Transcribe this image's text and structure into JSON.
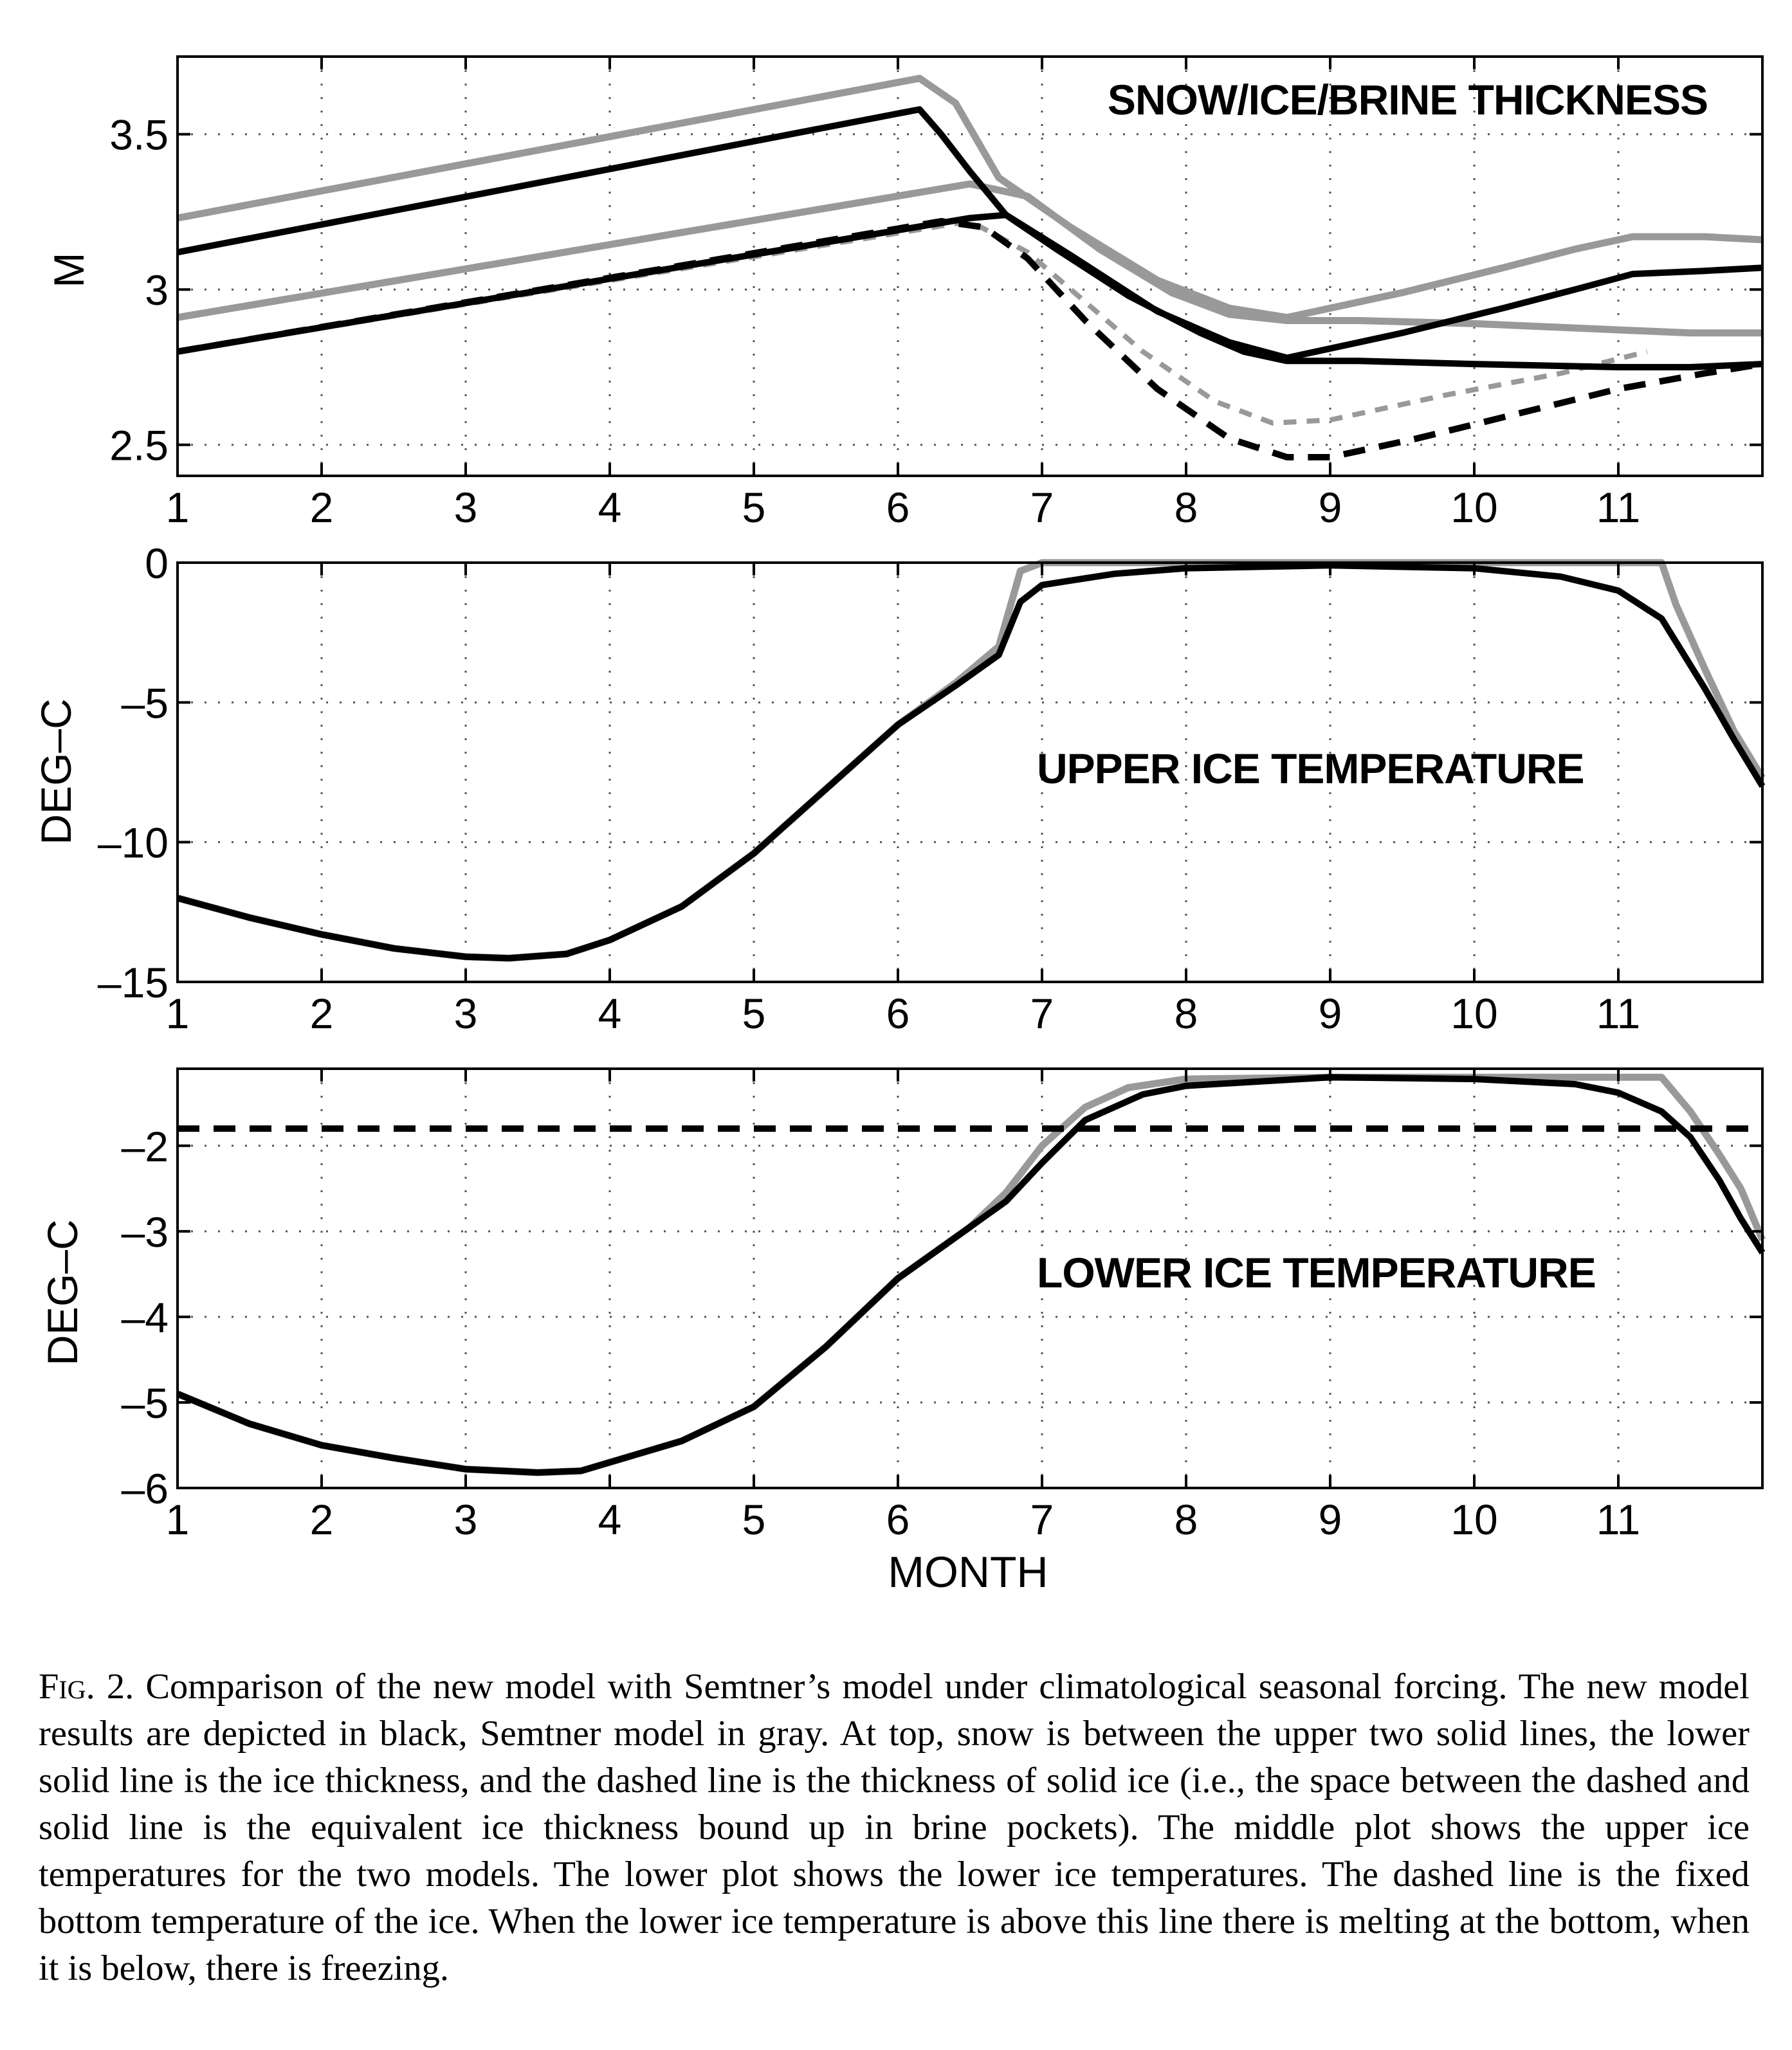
{
  "caption": {
    "label": "Fig. 2.",
    "text": "Comparison of the new model with Semtner’s model under climatological seasonal forcing. The new model results are depicted in black, Semtner model in gray. At top, snow is between the upper two solid lines, the lower solid line is the ice thickness, and the dashed line is the thickness of solid ice (i.e., the space between the dashed and solid line is the equivalent ice thickness bound up in brine pockets). The middle plot shows the upper ice temperatures for the two models. The lower plot shows the lower ice temperatures. The dashed line is the fixed bottom temperature of the ice. When the lower ice temperature is above this line there is melting at the bottom, when it is below, there is freezing."
  },
  "colors": {
    "new_model": "#000000",
    "semtner_model": "#999999",
    "grid": "#555555"
  },
  "chart_data": [
    {
      "type": "line",
      "title": "SNOW/ICE/BRINE THICKNESS",
      "xlabel": "",
      "ylabel": "M",
      "xlim": [
        1,
        12
      ],
      "ylim": [
        2.4,
        3.75
      ],
      "xticks": [
        1,
        2,
        3,
        4,
        5,
        6,
        7,
        8,
        9,
        10,
        11
      ],
      "yticks": [
        2.5,
        3,
        3.5
      ],
      "ytick_labels": [
        "2.5",
        "3",
        "3.5"
      ],
      "grid": true,
      "series": [
        {
          "model": "Semtner",
          "role": "snow top",
          "style": "solid",
          "x": [
            1,
            6.15,
            6.4,
            6.7,
            7.2,
            7.8,
            8.3,
            8.7,
            9.5,
            10.2,
            10.7,
            11.1,
            11.6,
            12
          ],
          "y": [
            3.23,
            3.68,
            3.6,
            3.36,
            3.2,
            3.03,
            2.94,
            2.91,
            2.99,
            3.07,
            3.13,
            3.17,
            3.17,
            3.16
          ]
        },
        {
          "model": "new",
          "role": "snow top",
          "style": "solid",
          "x": [
            1,
            6.15,
            6.3,
            6.5,
            6.75,
            7.2,
            7.8,
            8.3,
            8.7,
            9.5,
            10.2,
            10.7,
            11.1,
            11.6,
            12
          ],
          "y": [
            3.12,
            3.58,
            3.5,
            3.38,
            3.24,
            3.11,
            2.93,
            2.83,
            2.78,
            2.86,
            2.94,
            3.0,
            3.05,
            3.06,
            3.07
          ]
        },
        {
          "model": "Semtner",
          "role": "ice thickness",
          "style": "solid",
          "x": [
            1,
            6.5,
            6.9,
            7.4,
            7.9,
            8.3,
            8.7,
            9.2,
            10.0,
            11.0,
            11.5,
            12
          ],
          "y": [
            2.91,
            3.34,
            3.3,
            3.13,
            2.99,
            2.92,
            2.9,
            2.9,
            2.89,
            2.87,
            2.86,
            2.86
          ]
        },
        {
          "model": "new",
          "role": "ice thickness",
          "style": "solid",
          "x": [
            1,
            6.5,
            6.75,
            7.1,
            7.6,
            8.1,
            8.4,
            8.7,
            9.2,
            10.0,
            11.0,
            11.5,
            12
          ],
          "y": [
            2.8,
            3.23,
            3.24,
            3.13,
            2.98,
            2.86,
            2.8,
            2.77,
            2.77,
            2.76,
            2.75,
            2.75,
            2.76
          ]
        },
        {
          "model": "Semtner",
          "role": "solid ice",
          "style": "dashed",
          "x": [
            1,
            6.5,
            6.9,
            7.3,
            7.7,
            8.2,
            8.6,
            9.0,
            9.8,
            10.6,
            11.2
          ],
          "y": [
            2.8,
            3.22,
            3.12,
            2.96,
            2.8,
            2.64,
            2.57,
            2.58,
            2.66,
            2.73,
            2.8
          ]
        },
        {
          "model": "new",
          "role": "solid ice",
          "style": "dashed",
          "x": [
            1,
            6.3,
            6.6,
            6.9,
            7.3,
            7.8,
            8.3,
            8.7,
            9.0,
            9.6,
            10.3,
            11.0,
            11.6,
            12
          ],
          "y": [
            2.8,
            3.22,
            3.2,
            3.1,
            2.9,
            2.68,
            2.52,
            2.46,
            2.46,
            2.52,
            2.6,
            2.68,
            2.73,
            2.76
          ]
        }
      ]
    },
    {
      "type": "line",
      "title": "UPPER ICE TEMPERATURE",
      "xlabel": "",
      "ylabel": "DEG–C",
      "xlim": [
        1,
        12
      ],
      "ylim": [
        -15,
        0
      ],
      "xticks": [
        1,
        2,
        3,
        4,
        5,
        6,
        7,
        8,
        9,
        10,
        11
      ],
      "yticks": [
        -15,
        -10,
        -5,
        0
      ],
      "ytick_labels": [
        "–15",
        "–10",
        "–5",
        "0"
      ],
      "grid": true,
      "series": [
        {
          "model": "Semtner",
          "style": "solid",
          "x": [
            1,
            1.5,
            2,
            2.5,
            3,
            3.3,
            3.7,
            4.0,
            4.5,
            5.0,
            5.5,
            6.0,
            6.4,
            6.7,
            6.85,
            7.0,
            9.0,
            11.3,
            11.4,
            11.6,
            11.8,
            12
          ],
          "y": [
            -12.0,
            -12.7,
            -13.3,
            -13.8,
            -14.1,
            -14.15,
            -14.0,
            -13.5,
            -12.3,
            -10.4,
            -8.1,
            -5.8,
            -4.3,
            -3.0,
            -0.3,
            0.0,
            0.0,
            0.0,
            -1.5,
            -3.8,
            -6.0,
            -7.7
          ]
        },
        {
          "model": "new",
          "style": "solid",
          "x": [
            1,
            1.5,
            2,
            2.5,
            3,
            3.3,
            3.7,
            4.0,
            4.5,
            5.0,
            5.5,
            6.0,
            6.4,
            6.7,
            6.85,
            7.0,
            7.5,
            8.0,
            9.0,
            10.0,
            10.6,
            11.0,
            11.3,
            11.6,
            11.8,
            12
          ],
          "y": [
            -12.0,
            -12.7,
            -13.3,
            -13.8,
            -14.1,
            -14.15,
            -14.0,
            -13.5,
            -12.3,
            -10.4,
            -8.1,
            -5.8,
            -4.4,
            -3.3,
            -1.4,
            -0.8,
            -0.4,
            -0.2,
            -0.1,
            -0.2,
            -0.5,
            -1.0,
            -2.0,
            -4.5,
            -6.3,
            -8.0
          ]
        }
      ]
    },
    {
      "type": "line",
      "title": "LOWER ICE TEMPERATURE",
      "xlabel": "MONTH",
      "ylabel": "DEG–C",
      "xlim": [
        1,
        12
      ],
      "ylim": [
        -6,
        -1.1
      ],
      "xticks": [
        1,
        2,
        3,
        4,
        5,
        6,
        7,
        8,
        9,
        10,
        11
      ],
      "yticks": [
        -6,
        -5,
        -4,
        -3,
        -2
      ],
      "ytick_labels": [
        "–6",
        "–5",
        "–4",
        "–3",
        "–2"
      ],
      "grid": true,
      "series": [
        {
          "model": "Semtner",
          "style": "solid",
          "x": [
            1,
            1.5,
            2,
            2.5,
            3,
            3.5,
            3.8,
            4.0,
            4.5,
            5.0,
            5.5,
            6.0,
            6.5,
            6.75,
            7.0,
            7.3,
            7.6,
            8.0,
            9.0,
            11.0,
            11.3,
            11.5,
            11.7,
            11.85,
            12
          ],
          "y": [
            -4.9,
            -5.25,
            -5.5,
            -5.65,
            -5.78,
            -5.82,
            -5.8,
            -5.7,
            -5.45,
            -5.05,
            -4.35,
            -3.55,
            -2.95,
            -2.55,
            -2.0,
            -1.55,
            -1.32,
            -1.22,
            -1.2,
            -1.2,
            -1.2,
            -1.6,
            -2.1,
            -2.5,
            -3.1
          ]
        },
        {
          "model": "new",
          "style": "solid",
          "x": [
            1,
            1.5,
            2,
            2.5,
            3,
            3.5,
            3.8,
            4.0,
            4.5,
            5.0,
            5.5,
            6.0,
            6.5,
            6.75,
            7.0,
            7.3,
            7.7,
            8.0,
            9.0,
            10.0,
            10.7,
            11.0,
            11.3,
            11.5,
            11.7,
            11.85,
            12
          ],
          "y": [
            -4.9,
            -5.25,
            -5.5,
            -5.65,
            -5.78,
            -5.82,
            -5.8,
            -5.7,
            -5.45,
            -5.05,
            -4.35,
            -3.55,
            -2.95,
            -2.65,
            -2.2,
            -1.7,
            -1.4,
            -1.3,
            -1.2,
            -1.22,
            -1.28,
            -1.38,
            -1.6,
            -1.9,
            -2.4,
            -2.85,
            -3.25
          ]
        },
        {
          "label": "fixed bottom temperature",
          "style": "dashed",
          "x": [
            1,
            12
          ],
          "y": [
            -1.8,
            -1.8
          ]
        }
      ]
    }
  ]
}
